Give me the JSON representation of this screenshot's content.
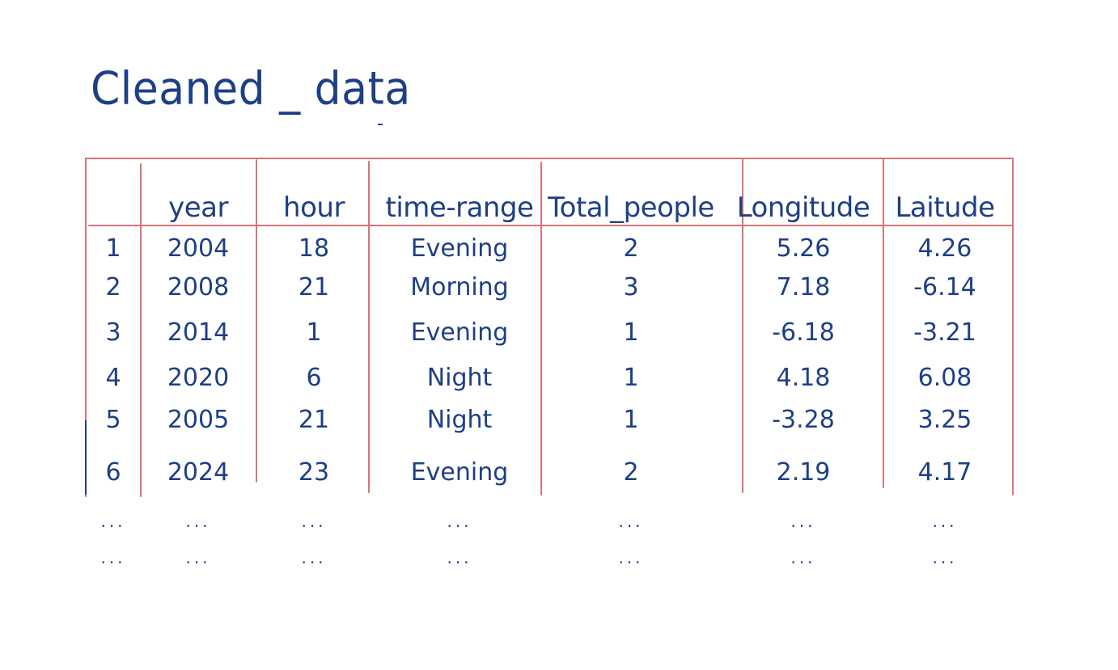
{
  "title": "Cleaned _ data",
  "table": {
    "columns": [
      "",
      "year",
      "hour",
      "time-range",
      "Total_people",
      "Longitude",
      "Laitude"
    ],
    "rows": [
      [
        "1",
        "2004",
        "18",
        "Evening",
        "2",
        "5.26",
        "4.26"
      ],
      [
        "2",
        "2008",
        "21",
        "Morning",
        "3",
        "7.18",
        "-6.14"
      ],
      [
        "3",
        "2014",
        "1",
        "Evening",
        "1",
        "-6.18",
        "-3.21"
      ],
      [
        "4",
        "2020",
        "6",
        "Night",
        "1",
        "4.18",
        "6.08"
      ],
      [
        "5",
        "2005",
        "21",
        "Night",
        "1",
        "-3.28",
        "3.25"
      ],
      [
        "6",
        "2024",
        "23",
        "Evening",
        "2",
        "2.19",
        "4.17"
      ]
    ],
    "continuation_rows": [
      [
        "...",
        "...",
        "...",
        "...",
        "...",
        "...",
        "..."
      ],
      [
        "...",
        "...",
        "...",
        "...",
        "...",
        "...",
        "..."
      ]
    ]
  },
  "colors": {
    "ink": "#1d3f86",
    "grid": "#d9727a",
    "background": "#ffffff"
  }
}
